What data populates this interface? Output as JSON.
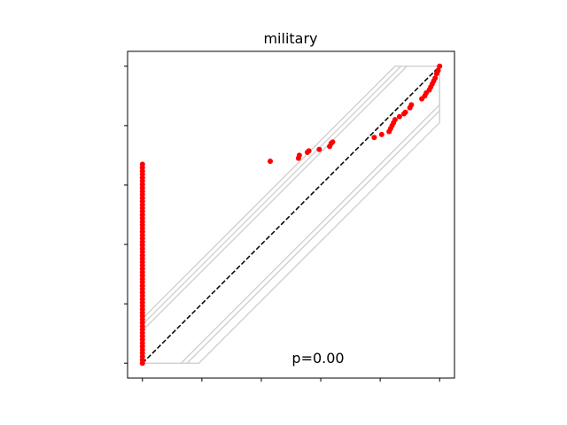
{
  "chart_data": {
    "type": "scatter",
    "title": "military",
    "annotation": "p=0.00",
    "xlim": [
      -0.05,
      1.05
    ],
    "ylim": [
      -0.05,
      1.05
    ],
    "xticks": [
      0,
      0.2,
      0.4,
      0.6,
      0.8,
      1.0
    ],
    "yticks": [
      0,
      0.2,
      0.4,
      0.6,
      0.8,
      1.0
    ],
    "tick_labels_shown": false,
    "grid": false,
    "colors": {
      "points": "#ff0000",
      "envelope": "#d3d3d3",
      "reference": "#000000"
    },
    "reference_line": {
      "style": "dashed",
      "x": [
        0,
        1
      ],
      "y": [
        0,
        1
      ]
    },
    "envelope_offsets": [
      0.11,
      0.13,
      0.15,
      -0.13,
      -0.15,
      -0.19
    ],
    "points": {
      "x0_column": {
        "x": 0.0,
        "y_min": 0.0,
        "y_max": 0.67,
        "count": 60
      },
      "scatter": [
        {
          "x": 0.43,
          "y": 0.68
        },
        {
          "x": 0.525,
          "y": 0.69
        },
        {
          "x": 0.528,
          "y": 0.7
        },
        {
          "x": 0.555,
          "y": 0.71
        },
        {
          "x": 0.56,
          "y": 0.715
        },
        {
          "x": 0.595,
          "y": 0.72
        },
        {
          "x": 0.63,
          "y": 0.73
        },
        {
          "x": 0.635,
          "y": 0.74
        },
        {
          "x": 0.64,
          "y": 0.745
        },
        {
          "x": 0.78,
          "y": 0.76
        },
        {
          "x": 0.805,
          "y": 0.77
        },
        {
          "x": 0.83,
          "y": 0.78
        },
        {
          "x": 0.835,
          "y": 0.79
        },
        {
          "x": 0.84,
          "y": 0.8
        },
        {
          "x": 0.845,
          "y": 0.81
        },
        {
          "x": 0.85,
          "y": 0.82
        },
        {
          "x": 0.865,
          "y": 0.83
        },
        {
          "x": 0.88,
          "y": 0.84
        },
        {
          "x": 0.885,
          "y": 0.845
        },
        {
          "x": 0.9,
          "y": 0.86
        },
        {
          "x": 0.905,
          "y": 0.87
        },
        {
          "x": 0.94,
          "y": 0.89
        },
        {
          "x": 0.95,
          "y": 0.9
        },
        {
          "x": 0.955,
          "y": 0.91
        },
        {
          "x": 0.965,
          "y": 0.92
        },
        {
          "x": 0.97,
          "y": 0.93
        },
        {
          "x": 0.975,
          "y": 0.94
        },
        {
          "x": 0.98,
          "y": 0.95
        },
        {
          "x": 0.985,
          "y": 0.96
        },
        {
          "x": 0.99,
          "y": 0.975
        },
        {
          "x": 0.995,
          "y": 0.985
        },
        {
          "x": 1.0,
          "y": 1.0
        }
      ]
    }
  }
}
